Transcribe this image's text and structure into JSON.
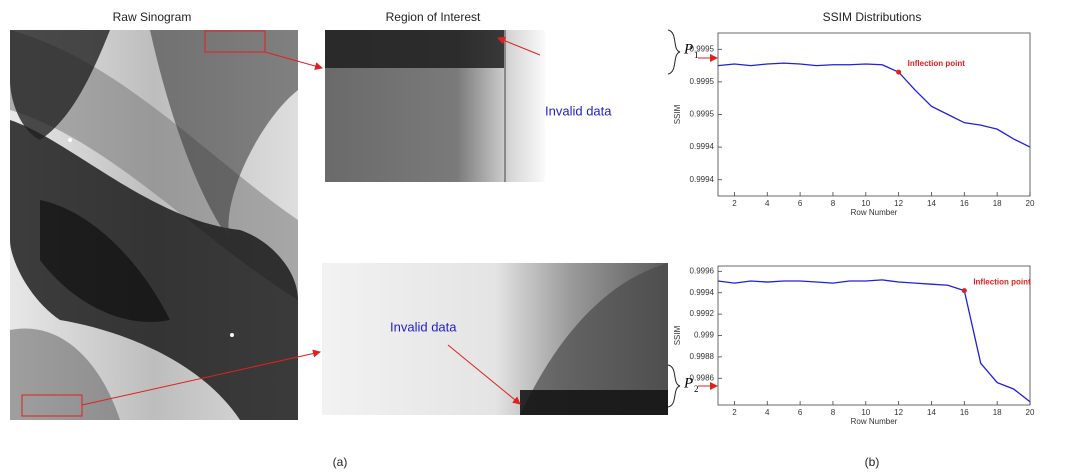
{
  "figure": {
    "raw_title": "Raw Sinogram",
    "roi_title": "Region of Interest",
    "ssim_title": "SSIM Distributions",
    "invalid_top": "Invalid data",
    "invalid_bottom": "Invalid data",
    "p1": "P",
    "p1_sub": "1",
    "p2": "P",
    "p2_sub": "2",
    "label_a": "(a)",
    "label_b": "(b)"
  },
  "chart_data": [
    {
      "type": "line",
      "xlabel": "Row Number",
      "ylabel": "SSIM",
      "color": "#1f1fe0",
      "x": [
        1,
        2,
        3,
        4,
        5,
        6,
        7,
        8,
        9,
        10,
        11,
        12,
        13,
        14,
        15,
        16,
        17,
        18,
        19,
        20
      ],
      "values": [
        0.99952,
        0.999522,
        0.99952,
        0.999522,
        0.999523,
        0.999522,
        0.99952,
        0.999521,
        0.999521,
        0.999522,
        0.999521,
        0.999512,
        0.99949,
        0.99947,
        0.99946,
        0.99945,
        0.999447,
        0.999442,
        0.99943,
        0.99942
      ],
      "xlim": [
        1,
        20
      ],
      "xticks": [
        2,
        4,
        6,
        8,
        10,
        12,
        14,
        16,
        18,
        20
      ],
      "ylim": [
        0.99936,
        0.99956
      ],
      "yticks": [
        {
          "value": 0.99938,
          "label": "0.9994"
        },
        {
          "value": 0.99942,
          "label": "0.9994"
        },
        {
          "value": 0.99946,
          "label": "0.9995"
        },
        {
          "value": 0.9995,
          "label": "0.9995"
        },
        {
          "value": 0.99954,
          "label": "0.9995"
        }
      ],
      "annotation": {
        "text": "Inflection point",
        "x": 12,
        "color": "#e02020"
      }
    },
    {
      "type": "line",
      "xlabel": "Row Number",
      "ylabel": "SSIM",
      "color": "#1f1fe0",
      "x": [
        1,
        2,
        3,
        4,
        5,
        6,
        7,
        8,
        9,
        10,
        11,
        12,
        13,
        14,
        15,
        16,
        17,
        18,
        19,
        20
      ],
      "values": [
        0.99951,
        0.99949,
        0.99951,
        0.9995,
        0.99951,
        0.99951,
        0.9995,
        0.99949,
        0.99951,
        0.99951,
        0.99952,
        0.9995,
        0.99949,
        0.99948,
        0.99947,
        0.99942,
        0.99874,
        0.99856,
        0.9985,
        0.99838
      ],
      "xlim": [
        1,
        20
      ],
      "xticks": [
        2,
        4,
        6,
        8,
        10,
        12,
        14,
        16,
        18,
        20
      ],
      "ylim": [
        0.99835,
        0.99965
      ],
      "yticks": [
        0.9986,
        0.9988,
        0.999,
        0.9992,
        0.9994,
        0.9996
      ],
      "annotation": {
        "text": "Inflection point",
        "x": 16,
        "color": "#e02020"
      }
    }
  ]
}
